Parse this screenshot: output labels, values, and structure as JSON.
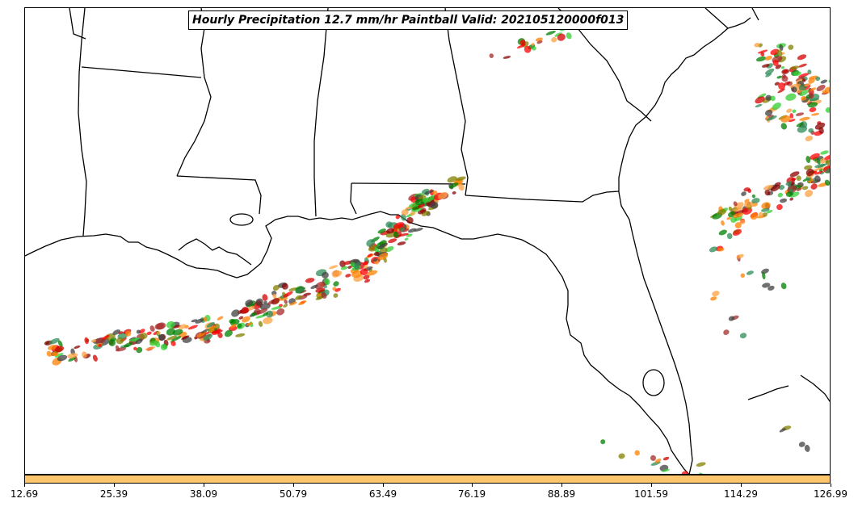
{
  "title": "Hourly Precipitation 12.7 mm/hr Paintball Valid: 202105120000f013",
  "colorbar": {
    "color": "#ffc66e",
    "ticks": [
      "12.69",
      "25.39",
      "38.09",
      "50.79",
      "63.49",
      "76.19",
      "88.89",
      "101.59",
      "114.29",
      "126.99"
    ]
  },
  "member_colors": [
    "#ff0000",
    "#d40000",
    "#ff8000",
    "#ffa040",
    "#808000",
    "#2e8b57",
    "#008000",
    "#32cd32",
    "#8b0000",
    "#404040",
    "#a52a2a"
  ]
}
